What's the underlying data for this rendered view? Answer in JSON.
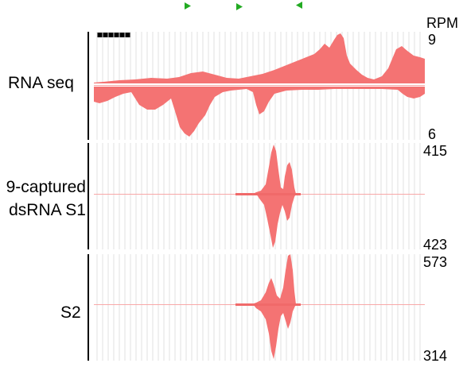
{
  "header": {
    "rpm_label": "RPM"
  },
  "markers": [
    {
      "direction": "right",
      "icon": "green-arrow-right-icon",
      "color": "#22aa22"
    },
    {
      "direction": "right",
      "icon": "green-arrow-right-icon",
      "color": "#22aa22"
    },
    {
      "direction": "left",
      "icon": "green-arrow-left-icon",
      "color": "#22aa22"
    }
  ],
  "tracks": [
    {
      "label": "RNA seq",
      "top_value": "9",
      "bottom_value": "6"
    },
    {
      "label_line1": "9-captured",
      "label_line2": "dsRNA S1",
      "top_value": "415",
      "bottom_value": "423"
    },
    {
      "label": "S2",
      "top_value": "573",
      "bottom_value": "314"
    }
  ],
  "colors": {
    "signal": "#f47373",
    "signal_light": "#f8a8a8",
    "grid": "#e2e2e2",
    "axis": "#000000"
  }
}
